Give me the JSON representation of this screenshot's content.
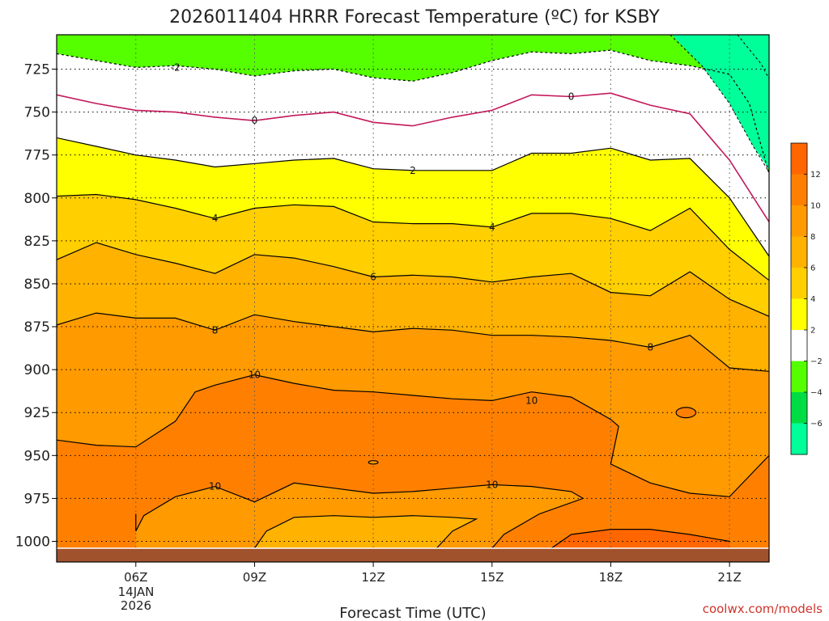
{
  "chart_data": {
    "type": "contour",
    "title": "2026011404 HRRR Forecast Temperature (ºC) for KSBY",
    "xlabel": "Forecast Time (UTC)",
    "credit": "coolwx.com/models",
    "x_ticks": [
      "06Z",
      "09Z",
      "12Z",
      "15Z",
      "18Z",
      "21Z"
    ],
    "x_tick_hours": [
      6,
      9,
      12,
      15,
      18,
      21
    ],
    "x_date_line1": "14JAN",
    "x_date_line2": "2026",
    "x_range_hours": [
      4,
      22
    ],
    "y_ticks": [
      "725",
      "750",
      "775",
      "800",
      "825",
      "850",
      "875",
      "900",
      "925",
      "950",
      "975",
      "1000"
    ],
    "y_range_hpa": [
      705,
      1012
    ],
    "surface_pressure_hpa": 1004,
    "colorbar": {
      "ticks": [
        "12",
        "10",
        "8",
        "6",
        "4",
        "2",
        "−2",
        "−4",
        "−6"
      ],
      "bins": [
        {
          "range": "12 to 14",
          "color": "#ff6600"
        },
        {
          "range": "10 to 12",
          "color": "#ff8000"
        },
        {
          "range": "8 to 10",
          "color": "#ff9a00"
        },
        {
          "range": "6 to 8",
          "color": "#ffb200"
        },
        {
          "range": "4 to 6",
          "color": "#ffcf00"
        },
        {
          "range": "2 to 4",
          "color": "#ffff00"
        },
        {
          "range": "-2 to 2",
          "color": "#ffffff"
        },
        {
          "range": "-4 to -2",
          "color": "#55ff00"
        },
        {
          "range": "-6 to -4",
          "color": "#00dd44"
        },
        {
          "range": "below -6",
          "color": "#00ff99"
        }
      ]
    },
    "contour_labels": [
      {
        "text": "-2",
        "hour": 7.0,
        "hpa": 724
      },
      {
        "text": "0",
        "hour": 9.0,
        "hpa": 755
      },
      {
        "text": "0",
        "hour": 17.0,
        "hpa": 741
      },
      {
        "text": "2",
        "hour": 13.0,
        "hpa": 784
      },
      {
        "text": "4",
        "hour": 8.0,
        "hpa": 812
      },
      {
        "text": "4",
        "hour": 15.0,
        "hpa": 817
      },
      {
        "text": "6",
        "hour": 12.0,
        "hpa": 846
      },
      {
        "text": "8",
        "hour": 8.0,
        "hpa": 877
      },
      {
        "text": "8",
        "hour": 19.0,
        "hpa": 887
      },
      {
        "text": "10",
        "hour": 9.0,
        "hpa": 903
      },
      {
        "text": "10",
        "hour": 16.0,
        "hpa": 918
      },
      {
        "text": "10",
        "hour": 8.0,
        "hpa": 968
      },
      {
        "text": "10",
        "hour": 15.0,
        "hpa": 967
      }
    ],
    "isotherms": [
      {
        "temp": -2,
        "style": "dashed",
        "points": [
          [
            4,
            716
          ],
          [
            5,
            720
          ],
          [
            6,
            724
          ],
          [
            7,
            723
          ],
          [
            8,
            725
          ],
          [
            9,
            729
          ],
          [
            10,
            726
          ],
          [
            11,
            725
          ],
          [
            12,
            730
          ],
          [
            13,
            732
          ],
          [
            14,
            727
          ],
          [
            15,
            720
          ],
          [
            16,
            715
          ],
          [
            17,
            716
          ],
          [
            18,
            714
          ],
          [
            19,
            720
          ],
          [
            20,
            723
          ],
          [
            21,
            728
          ],
          [
            21.5,
            745
          ],
          [
            22,
            786
          ]
        ]
      },
      {
        "temp": 0,
        "style": "magenta",
        "points": [
          [
            4,
            740
          ],
          [
            5,
            745
          ],
          [
            6,
            749
          ],
          [
            7,
            750
          ],
          [
            8,
            753
          ],
          [
            9,
            755
          ],
          [
            10,
            752
          ],
          [
            11,
            750
          ],
          [
            12,
            756
          ],
          [
            13,
            758
          ],
          [
            14,
            753
          ],
          [
            15,
            749
          ],
          [
            16,
            740
          ],
          [
            17,
            741
          ],
          [
            18,
            739
          ],
          [
            19,
            746
          ],
          [
            20,
            751
          ],
          [
            21,
            778
          ],
          [
            22,
            814
          ]
        ]
      },
      {
        "temp": 2,
        "style": "solid",
        "points": [
          [
            4,
            765
          ],
          [
            5,
            770
          ],
          [
            6,
            775
          ],
          [
            7,
            778
          ],
          [
            8,
            782
          ],
          [
            9,
            780
          ],
          [
            10,
            778
          ],
          [
            11,
            777
          ],
          [
            12,
            783
          ],
          [
            13,
            784
          ],
          [
            14,
            784
          ],
          [
            15,
            784
          ],
          [
            16,
            774
          ],
          [
            17,
            774
          ],
          [
            18,
            771
          ],
          [
            19,
            778
          ],
          [
            20,
            777
          ],
          [
            21,
            800
          ],
          [
            22,
            834
          ]
        ]
      },
      {
        "temp": 4,
        "style": "solid",
        "points": [
          [
            4,
            799
          ],
          [
            5,
            798
          ],
          [
            6,
            801
          ],
          [
            7,
            806
          ],
          [
            8,
            812
          ],
          [
            9,
            806
          ],
          [
            10,
            804
          ],
          [
            11,
            805
          ],
          [
            12,
            814
          ],
          [
            13,
            815
          ],
          [
            14,
            815
          ],
          [
            15,
            817
          ],
          [
            16,
            809
          ],
          [
            17,
            809
          ],
          [
            18,
            812
          ],
          [
            19,
            819
          ],
          [
            20,
            806
          ],
          [
            21,
            830
          ],
          [
            22,
            848
          ]
        ]
      },
      {
        "temp": 6,
        "style": "solid",
        "points": [
          [
            4,
            836
          ],
          [
            5,
            826
          ],
          [
            6,
            833
          ],
          [
            7,
            838
          ],
          [
            8,
            844
          ],
          [
            9,
            833
          ],
          [
            10,
            835
          ],
          [
            11,
            840
          ],
          [
            12,
            846
          ],
          [
            13,
            845
          ],
          [
            14,
            846
          ],
          [
            15,
            849
          ],
          [
            16,
            846
          ],
          [
            17,
            844
          ],
          [
            18,
            855
          ],
          [
            19,
            857
          ],
          [
            20,
            843
          ],
          [
            21,
            859
          ],
          [
            22,
            869
          ]
        ]
      },
      {
        "temp": 8,
        "style": "solid",
        "points": [
          [
            4,
            874
          ],
          [
            5,
            867
          ],
          [
            6,
            870
          ],
          [
            7,
            870
          ],
          [
            8,
            877
          ],
          [
            9,
            868
          ],
          [
            10,
            872
          ],
          [
            11,
            875
          ],
          [
            12,
            878
          ],
          [
            13,
            876
          ],
          [
            14,
            877
          ],
          [
            15,
            880
          ],
          [
            16,
            880
          ],
          [
            17,
            881
          ],
          [
            18,
            883
          ],
          [
            19,
            887
          ],
          [
            20,
            880
          ],
          [
            21,
            899
          ],
          [
            22,
            901
          ]
        ]
      },
      {
        "temp": 10,
        "style": "solid",
        "points": [
          [
            4,
            941
          ],
          [
            5,
            944
          ],
          [
            6,
            945
          ],
          [
            7,
            930
          ],
          [
            7.5,
            913
          ],
          [
            8,
            909
          ],
          [
            9,
            903
          ],
          [
            10,
            908
          ],
          [
            11,
            912
          ],
          [
            12,
            913
          ],
          [
            13,
            915
          ],
          [
            14,
            917
          ],
          [
            15,
            918
          ],
          [
            16,
            913
          ],
          [
            17,
            916
          ],
          [
            18,
            929
          ],
          [
            18.2,
            933
          ],
          [
            18,
            955
          ],
          [
            19,
            966
          ],
          [
            20,
            972
          ],
          [
            21,
            974
          ],
          [
            22,
            950
          ]
        ]
      },
      {
        "temp": 10,
        "style": "solid",
        "points": [
          [
            6,
            984
          ],
          [
            6,
            994
          ],
          [
            6.2,
            985
          ],
          [
            7,
            974
          ],
          [
            8,
            968
          ],
          [
            9,
            977
          ],
          [
            10,
            966
          ],
          [
            11,
            969
          ],
          [
            12,
            972
          ],
          [
            13,
            971
          ],
          [
            14,
            969
          ],
          [
            15,
            967
          ],
          [
            16,
            968
          ],
          [
            17,
            971
          ],
          [
            17.3,
            975
          ],
          [
            16.2,
            984
          ],
          [
            15.3,
            996
          ],
          [
            15.0,
            1004
          ]
        ]
      },
      {
        "temp": 12,
        "style": "solid",
        "points": [
          [
            16.5,
            1004
          ],
          [
            17,
            996
          ],
          [
            18,
            993
          ],
          [
            19,
            993
          ],
          [
            20,
            996
          ],
          [
            21,
            1000
          ]
        ]
      },
      {
        "temp": 10,
        "style": "solid",
        "points": [
          [
            9,
            1004
          ],
          [
            9.3,
            994
          ],
          [
            10,
            986
          ],
          [
            11,
            985
          ],
          [
            12,
            986
          ],
          [
            13,
            985
          ],
          [
            14,
            986
          ],
          [
            14.6,
            987
          ],
          [
            14,
            994
          ],
          [
            13.6,
            1004
          ]
        ]
      }
    ],
    "closed_contours": [
      {
        "temp": 12,
        "center": [
          19.9,
          925
        ],
        "rx": 0.25,
        "ry": 3
      },
      {
        "temp": 10,
        "center": [
          12.0,
          954
        ],
        "rx": 0.12,
        "ry": 1
      }
    ]
  }
}
